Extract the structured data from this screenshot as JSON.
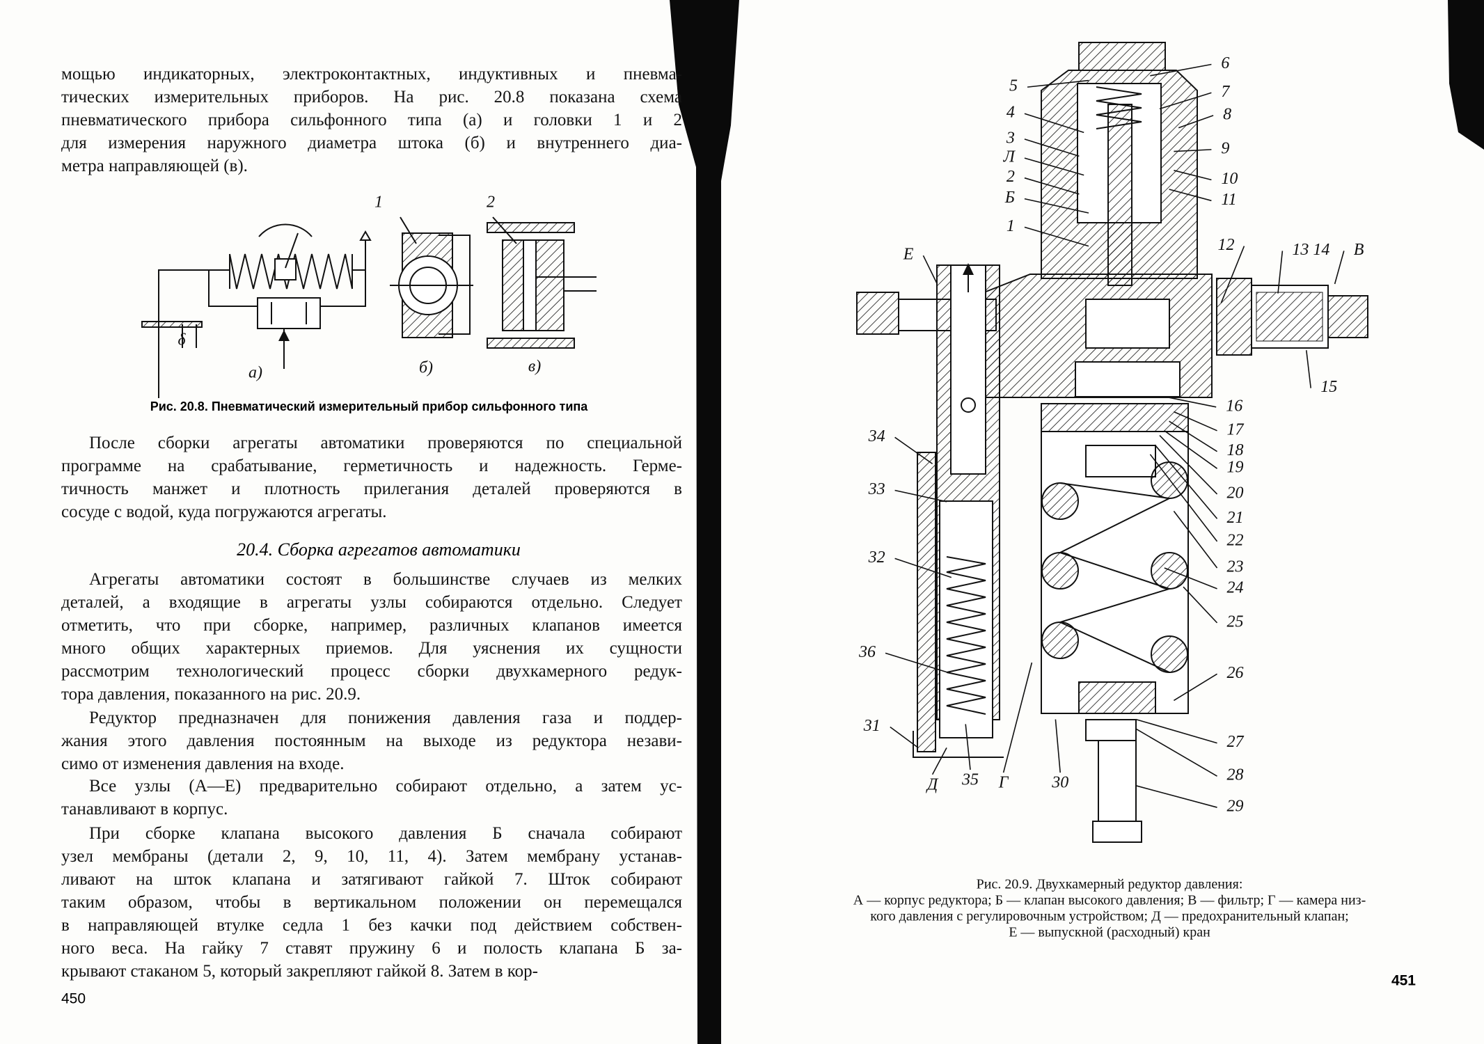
{
  "left_page": {
    "paragraphs": [
      [
        "мощью индикаторных, электроконтактных, индуктивных и пневма-",
        "тических измерительных приборов. На рис. 20.8 показана схема",
        "пневматического прибора сильфонного типа (а) и головки 1 и 2",
        "для измерения наружного диаметра штока (б) и внутреннего диа-",
        "метра направляющей (в)."
      ],
      [
        "После сборки агрегаты автоматики проверяются по специальной",
        "программе на срабатывание, герметичность и надежность. Герме-",
        "тичность манжет и плотность прилегания деталей проверяются в",
        "сосуде с водой, куда погружаются агрегаты."
      ],
      [
        "Агрегаты автоматики состоят в большинстве случаев из мелких",
        "деталей, а входящие в агрегаты узлы собираются отдельно. Следует",
        "отметить, что при сборке, например, различных клапанов имеется",
        "много общих характерных приемов. Для уяснения их сущности",
        "рассмотрим технологический процесс сборки двухкамерного редук-",
        "тора давления, показанного на рис. 20.9."
      ],
      [
        "Редуктор предназначен для понижения давления газа и поддер-",
        "жания этого давления постоянным на выходе из редуктора незави-",
        "симо от изменения давления на входе."
      ],
      [
        "Все узлы (А—Е) предварительно собирают отдельно, а затем ус-",
        "танавливают в корпус."
      ],
      [
        "При сборке клапана высокого давления Б сначала собирают",
        "узел мембраны (детали 2, 9, 10, 11, 4). Затем мембрану устанав-",
        "ливают на шток клапана и затягивают гайкой 7. Шток собирают",
        "таким образом, чтобы в вертикальном положении он перемещался",
        "в направляющей втулке седла 1 без качки под действием собствен-",
        "ного веса. На гайку 7 ставят пружину 6 и полость клапана Б за-",
        "крывают стаканом 5, который закрепляют гайкой 8. Затем в кор-"
      ]
    ],
    "heading": "20.4. Сборка агрегатов автоматики",
    "figure": {
      "labels": [
        "1",
        "2",
        "а)",
        "б)",
        "в)",
        "δ"
      ],
      "caption": "Рис. 20.8. Пневматический измерительный прибор сильфонного типа"
    },
    "page_number": "450"
  },
  "right_page": {
    "figure": {
      "labels": [
        "5",
        "6",
        "4",
        "7",
        "3",
        "8",
        "Л",
        "9",
        "2",
        "10",
        "Б",
        "11",
        "1",
        "12",
        "13 14",
        "В",
        "Е",
        "15",
        "16",
        "34",
        "17",
        "18",
        "19",
        "20",
        "33",
        "21",
        "22",
        "32",
        "23",
        "24",
        "25",
        "36",
        "26",
        "31",
        "27",
        "28",
        "35",
        "Д",
        "Г",
        "30",
        "29"
      ]
    },
    "caption": [
      "Рис. 20.9. Двухкамерный редуктор давления:",
      "А — корпус редуктора; Б — клапан высокого давления; В — фильтр; Г — камера низ-",
      "кого давления с регулировочным устройством; Д — предохранительный клапан;",
      "Е — выпускной (расходный) кран"
    ],
    "page_number": "451"
  }
}
